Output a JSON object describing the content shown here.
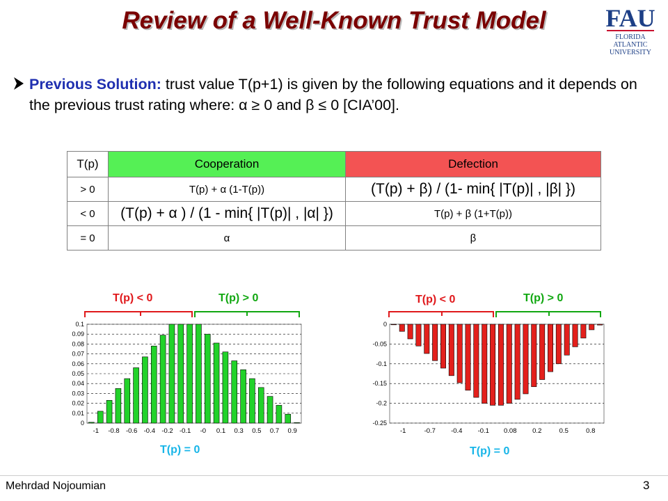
{
  "slide": {
    "title": "Review of a Well-Known Trust Model",
    "logo_text": [
      "FAU",
      "FLORIDA",
      "ATLANTIC",
      "UNIVERSITY"
    ],
    "bullet": {
      "lead": "Previous Solution:",
      "text": " trust value T(p+1) is given by the following equations and it depends on the previous trust rating where: α ≥ 0 and β ≤ 0 [CIA’00]."
    },
    "footer": {
      "author": "Mehrdad Nojoumian",
      "page": "3"
    }
  },
  "table": {
    "headers": [
      "T(p)",
      "Cooperation",
      "Defection"
    ],
    "rows": [
      {
        "cond": "> 0",
        "coop": "T(p) + α (1-T(p))",
        "def": "(T(p) + β) / (1- min{ |T(p)| , |β| })"
      },
      {
        "cond": "< 0",
        "coop": "(T(p) + α ) / (1 - min{ |T(p)| , |α| })",
        "def": "T(p) + β (1+T(p))"
      },
      {
        "cond": "= 0",
        "coop": "α",
        "def": "β"
      }
    ]
  },
  "colors": {
    "title": "#7a0000",
    "lead": "#1f2fb0",
    "coop": "#55f055",
    "def": "#f35353"
  },
  "chart_data": [
    {
      "type": "bar",
      "annotations": {
        "left": "T(p) < 0",
        "right": "T(p) > 0",
        "bottom": "T(p) = 0"
      },
      "ylim": [
        0,
        0.1
      ],
      "yticks": [
        "0",
        "0.01",
        "0.02",
        "0.03",
        "0.04",
        "0.05",
        "0.06",
        "0.07",
        "0.08",
        "0.09",
        "0.1"
      ],
      "xticks": [
        "-1",
        "-0.8",
        "-0.6",
        "-0.4",
        "-0.2",
        "-0.1",
        "-0",
        "0.1",
        "0.3",
        "0.5",
        "0.7",
        "0.9"
      ],
      "values": [
        0.0008,
        0.012,
        0.023,
        0.035,
        0.045,
        0.056,
        0.067,
        0.078,
        0.089,
        0.1,
        0.1,
        0.1,
        0.1,
        0.09,
        0.081,
        0.072,
        0.063,
        0.054,
        0.045,
        0.036,
        0.027,
        0.018,
        0.009,
        0.0005
      ],
      "color": "#22d22a"
    },
    {
      "type": "bar",
      "annotations": {
        "left": "T(p) < 0",
        "right": "T(p) > 0",
        "bottom": "T(p) = 0"
      },
      "ylim": [
        -0.25,
        0
      ],
      "yticks": [
        "0",
        "-0.05",
        "-0.1",
        "-0.15",
        "-0.2",
        "-0.25"
      ],
      "xticks": [
        "-1",
        "-0.7",
        "-0.4",
        "-0.1",
        "0.08",
        "0.2",
        "0.5",
        "0.8"
      ],
      "values": [
        -0.001,
        -0.018,
        -0.037,
        -0.055,
        -0.074,
        -0.092,
        -0.111,
        -0.13,
        -0.148,
        -0.167,
        -0.185,
        -0.2,
        -0.205,
        -0.205,
        -0.2,
        -0.19,
        -0.176,
        -0.158,
        -0.14,
        -0.12,
        -0.1,
        -0.078,
        -0.057,
        -0.035,
        -0.014,
        -0.002
      ],
      "color": "#e3201c"
    }
  ]
}
